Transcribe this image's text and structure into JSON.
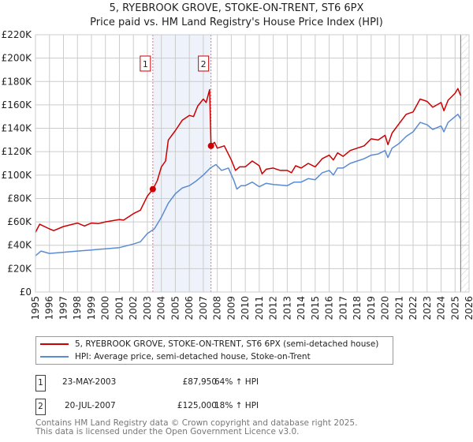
{
  "chart_data": {
    "type": "line",
    "title": "5, RYEBROOK GROVE, STOKE-ON-TRENT, ST6 6PX",
    "subtitle": "Price paid vs. HM Land Registry's House Price Index (HPI)",
    "xlim": [
      1995,
      2026
    ],
    "ylim": [
      0,
      220000
    ],
    "x_ticks": [
      "1995",
      "1996",
      "1997",
      "1998",
      "1999",
      "2000",
      "2001",
      "2002",
      "2003",
      "2004",
      "2005",
      "2006",
      "2007",
      "2008",
      "2009",
      "2010",
      "2011",
      "2012",
      "2013",
      "2014",
      "2015",
      "2016",
      "2017",
      "2018",
      "2019",
      "2020",
      "2021",
      "2022",
      "2023",
      "2024",
      "2025",
      "2026"
    ],
    "y_ticks": [
      {
        "v": 0,
        "label": "£0"
      },
      {
        "v": 20000,
        "label": "£20K"
      },
      {
        "v": 40000,
        "label": "£40K"
      },
      {
        "v": 60000,
        "label": "£60K"
      },
      {
        "v": 80000,
        "label": "£80K"
      },
      {
        "v": 100000,
        "label": "£100K"
      },
      {
        "v": 120000,
        "label": "£120K"
      },
      {
        "v": 140000,
        "label": "£140K"
      },
      {
        "v": 160000,
        "label": "£160K"
      },
      {
        "v": 180000,
        "label": "£180K"
      },
      {
        "v": 200000,
        "label": "£200K"
      },
      {
        "v": 220000,
        "label": "£220K"
      }
    ],
    "grid": true,
    "shaded_range": [
      2003.39,
      2007.55
    ],
    "forecast_hatch_from": 2025.4,
    "series": [
      {
        "name": "5, RYEBROOK GROVE, STOKE-ON-TRENT, ST6 6PX (semi-detached house)",
        "color": "#cc0000",
        "points": [
          [
            1995,
            51
          ],
          [
            1995.3,
            58
          ],
          [
            1996,
            54
          ],
          [
            1996.3,
            52.5
          ],
          [
            1997,
            56
          ],
          [
            1998,
            59
          ],
          [
            1998.5,
            56.5
          ],
          [
            1999,
            59
          ],
          [
            1999.5,
            58.5
          ],
          [
            2000,
            60
          ],
          [
            2001,
            62
          ],
          [
            2001.3,
            61.5
          ],
          [
            2002,
            67
          ],
          [
            2002.5,
            70
          ],
          [
            2003,
            82
          ],
          [
            2003.39,
            87.95
          ],
          [
            2003.7,
            95
          ],
          [
            2004,
            107
          ],
          [
            2004.3,
            112
          ],
          [
            2004.5,
            130
          ],
          [
            2005,
            138
          ],
          [
            2005.5,
            147
          ],
          [
            2006,
            151
          ],
          [
            2006.3,
            150
          ],
          [
            2006.6,
            159
          ],
          [
            2007,
            165
          ],
          [
            2007.2,
            162
          ],
          [
            2007.45,
            173
          ],
          [
            2007.55,
            125
          ],
          [
            2007.8,
            128
          ],
          [
            2008,
            123
          ],
          [
            2008.5,
            125
          ],
          [
            2009,
            113
          ],
          [
            2009.3,
            104
          ],
          [
            2009.6,
            107
          ],
          [
            2010,
            107
          ],
          [
            2010.5,
            112
          ],
          [
            2011,
            108
          ],
          [
            2011.2,
            101
          ],
          [
            2011.5,
            105
          ],
          [
            2012,
            106
          ],
          [
            2012.5,
            104
          ],
          [
            2013,
            104
          ],
          [
            2013.3,
            102
          ],
          [
            2013.6,
            108
          ],
          [
            2014,
            106
          ],
          [
            2014.5,
            110
          ],
          [
            2015,
            107
          ],
          [
            2015.5,
            114
          ],
          [
            2016,
            117
          ],
          [
            2016.3,
            113
          ],
          [
            2016.6,
            119
          ],
          [
            2017,
            116
          ],
          [
            2017.5,
            121
          ],
          [
            2018,
            123
          ],
          [
            2018.5,
            125
          ],
          [
            2019,
            131
          ],
          [
            2019.5,
            130
          ],
          [
            2020,
            134
          ],
          [
            2020.2,
            126
          ],
          [
            2020.5,
            136
          ],
          [
            2021,
            144
          ],
          [
            2021.5,
            152
          ],
          [
            2022,
            154
          ],
          [
            2022.5,
            165
          ],
          [
            2023,
            163
          ],
          [
            2023.4,
            158
          ],
          [
            2024,
            162
          ],
          [
            2024.2,
            155
          ],
          [
            2024.5,
            164
          ],
          [
            2025,
            170
          ],
          [
            2025.2,
            174
          ],
          [
            2025.4,
            168
          ]
        ]
      },
      {
        "name": "HPI: Average price, semi-detached house, Stoke-on-Trent",
        "color": "#5b8bd0",
        "points": [
          [
            1995,
            31
          ],
          [
            1995.4,
            35
          ],
          [
            1996,
            33
          ],
          [
            1997,
            34
          ],
          [
            1998,
            35
          ],
          [
            1999,
            36
          ],
          [
            2000,
            37
          ],
          [
            2001,
            38
          ],
          [
            2002,
            41
          ],
          [
            2002.5,
            43
          ],
          [
            2003,
            50
          ],
          [
            2003.5,
            54
          ],
          [
            2004,
            64
          ],
          [
            2004.5,
            76
          ],
          [
            2005,
            84
          ],
          [
            2005.5,
            89
          ],
          [
            2006,
            91
          ],
          [
            2006.5,
            95
          ],
          [
            2007,
            100
          ],
          [
            2007.5,
            106
          ],
          [
            2007.9,
            109
          ],
          [
            2008.3,
            104
          ],
          [
            2008.8,
            106
          ],
          [
            2009.2,
            95
          ],
          [
            2009.4,
            88
          ],
          [
            2009.7,
            91
          ],
          [
            2010,
            91
          ],
          [
            2010.5,
            94
          ],
          [
            2011,
            90
          ],
          [
            2011.5,
            93
          ],
          [
            2012,
            92
          ],
          [
            2013,
            91
          ],
          [
            2013.5,
            94
          ],
          [
            2014,
            94
          ],
          [
            2014.5,
            97
          ],
          [
            2015,
            96
          ],
          [
            2015.5,
            102
          ],
          [
            2016,
            104
          ],
          [
            2016.3,
            100
          ],
          [
            2016.6,
            106
          ],
          [
            2017,
            106
          ],
          [
            2017.5,
            110
          ],
          [
            2018,
            112
          ],
          [
            2018.5,
            114
          ],
          [
            2019,
            117
          ],
          [
            2019.5,
            118
          ],
          [
            2020,
            121
          ],
          [
            2020.2,
            115
          ],
          [
            2020.5,
            123
          ],
          [
            2021,
            127
          ],
          [
            2021.5,
            133
          ],
          [
            2022,
            137
          ],
          [
            2022.5,
            145
          ],
          [
            2023,
            143
          ],
          [
            2023.4,
            139
          ],
          [
            2024,
            142
          ],
          [
            2024.2,
            137
          ],
          [
            2024.5,
            145
          ],
          [
            2025,
            150
          ],
          [
            2025.2,
            152
          ],
          [
            2025.4,
            148
          ]
        ]
      }
    ],
    "sales": [
      {
        "label": "1",
        "x": 2003.39,
        "y": 87950
      },
      {
        "label": "2",
        "x": 2007.55,
        "y": 125000
      }
    ]
  },
  "legend": {
    "red": "5, RYEBROOK GROVE, STOKE-ON-TRENT, ST6 6PX (semi-detached house)",
    "blue": "HPI: Average price, semi-detached house, Stoke-on-Trent"
  },
  "transactions": [
    {
      "num": "1",
      "date": "23-MAY-2003",
      "price": "£87,950",
      "hpi": "64% ↑ HPI"
    },
    {
      "num": "2",
      "date": "20-JUL-2007",
      "price": "£125,000",
      "hpi": "18% ↑ HPI"
    }
  ],
  "footer": {
    "line1": "Contains HM Land Registry data © Crown copyright and database right 2025.",
    "line2": "This data is licensed under the Open Government Licence v3.0."
  }
}
